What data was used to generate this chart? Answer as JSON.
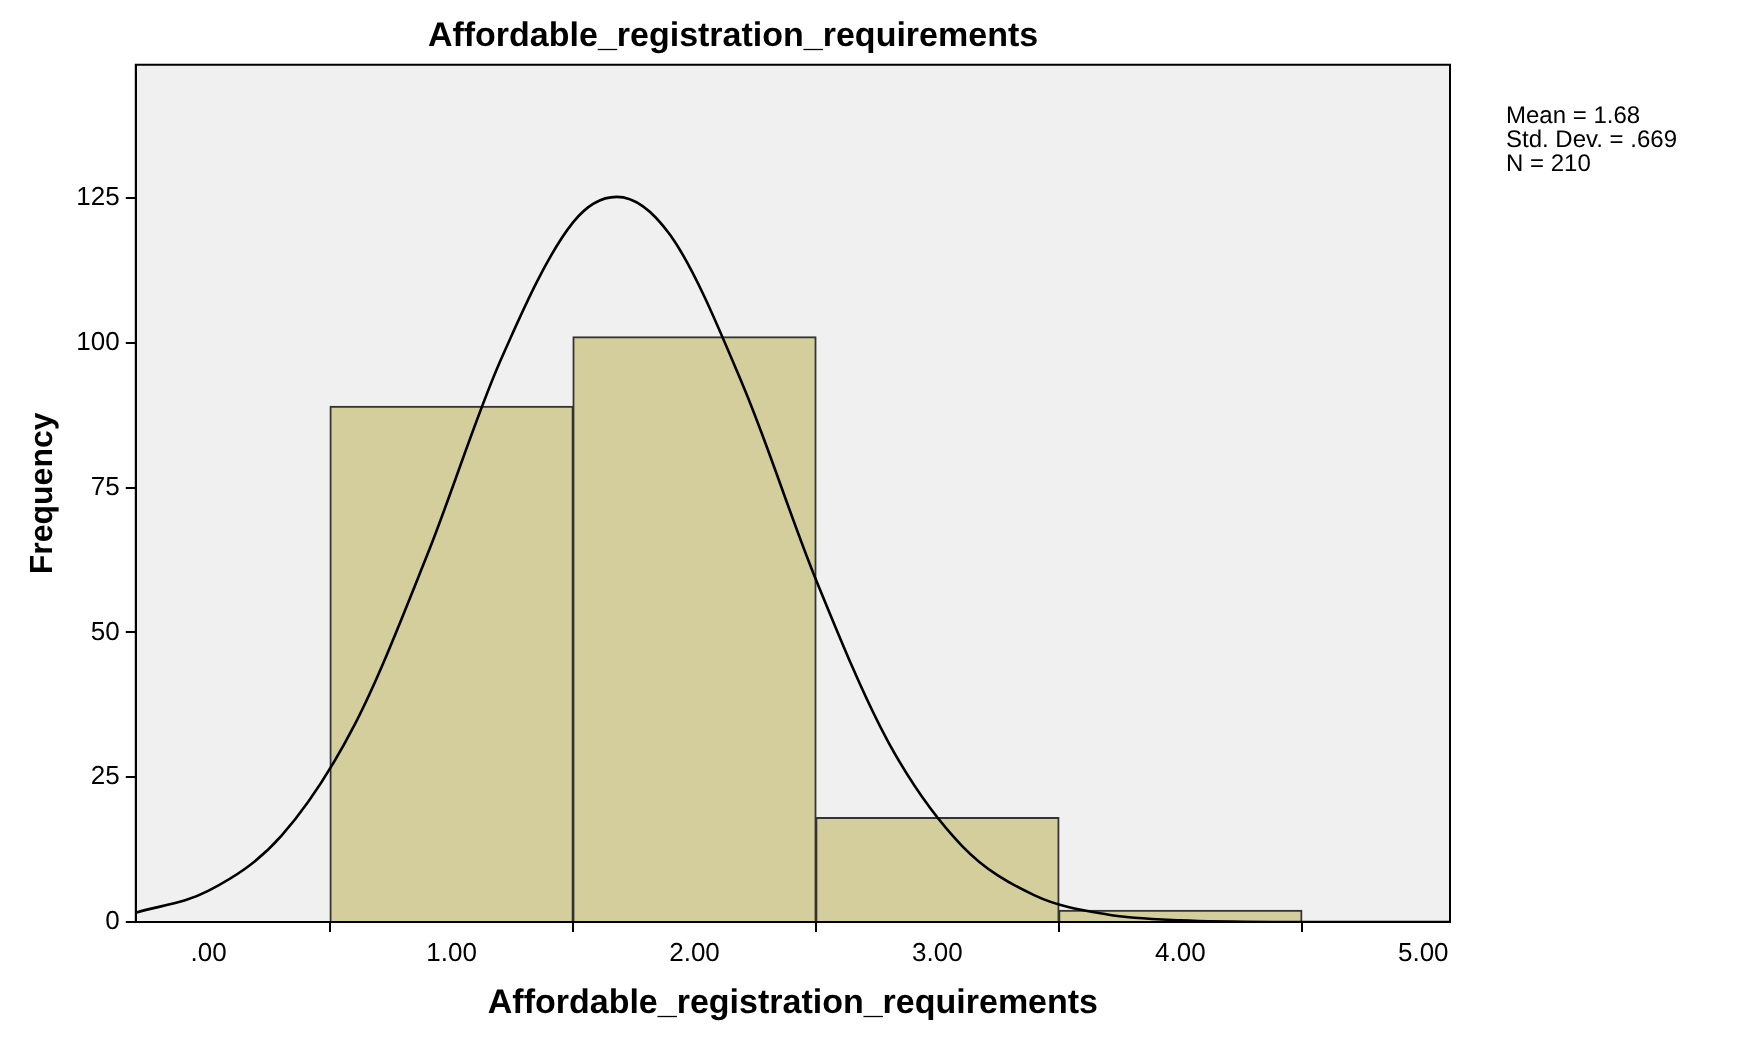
{
  "chart_data": {
    "type": "histogram",
    "title": "Affordable_registration_requirements",
    "xlabel": "Affordable_registration_requirements",
    "ylabel": "Frequency",
    "bins": [
      0.5,
      1.5,
      2.5,
      3.5,
      4.5
    ],
    "values": [
      89,
      101,
      18,
      2
    ],
    "color": "#d3ce9b",
    "series": [
      {
        "type": "line",
        "x": [
          -0.3,
          0,
          0.3,
          0.6,
          0.9,
          1.2,
          1.5,
          1.68,
          1.9,
          2.2,
          2.5,
          2.8,
          3.1,
          3.4,
          3.7,
          4.0,
          4.5,
          5.11
        ],
        "values": [
          1.6,
          5.4,
          14.9,
          34.0,
          63.4,
          96.8,
          120.8,
          125.2,
          118.6,
          92.6,
          59.1,
          30.9,
          13.2,
          4.6,
          1.3,
          0.3,
          0,
          0
        ],
        "color": "#000000"
      }
    ],
    "xlim": [
      -0.3,
      5.11
    ],
    "xticks": [
      {
        "value": 0,
        "label": ".00"
      },
      {
        "value": 1,
        "label": "1.00"
      },
      {
        "value": 2,
        "label": "2.00"
      },
      {
        "value": 3,
        "label": "3.00"
      },
      {
        "value": 4,
        "label": "4.00"
      },
      {
        "value": 5,
        "label": "5.00"
      }
    ],
    "ylim": [
      0,
      148
    ],
    "yticks": [
      0,
      25,
      50,
      75,
      100,
      125
    ],
    "annotations": [
      "Mean = 1.68",
      "Std. Dev. = .669",
      "N = 210"
    ],
    "grid": false,
    "legend": false
  }
}
